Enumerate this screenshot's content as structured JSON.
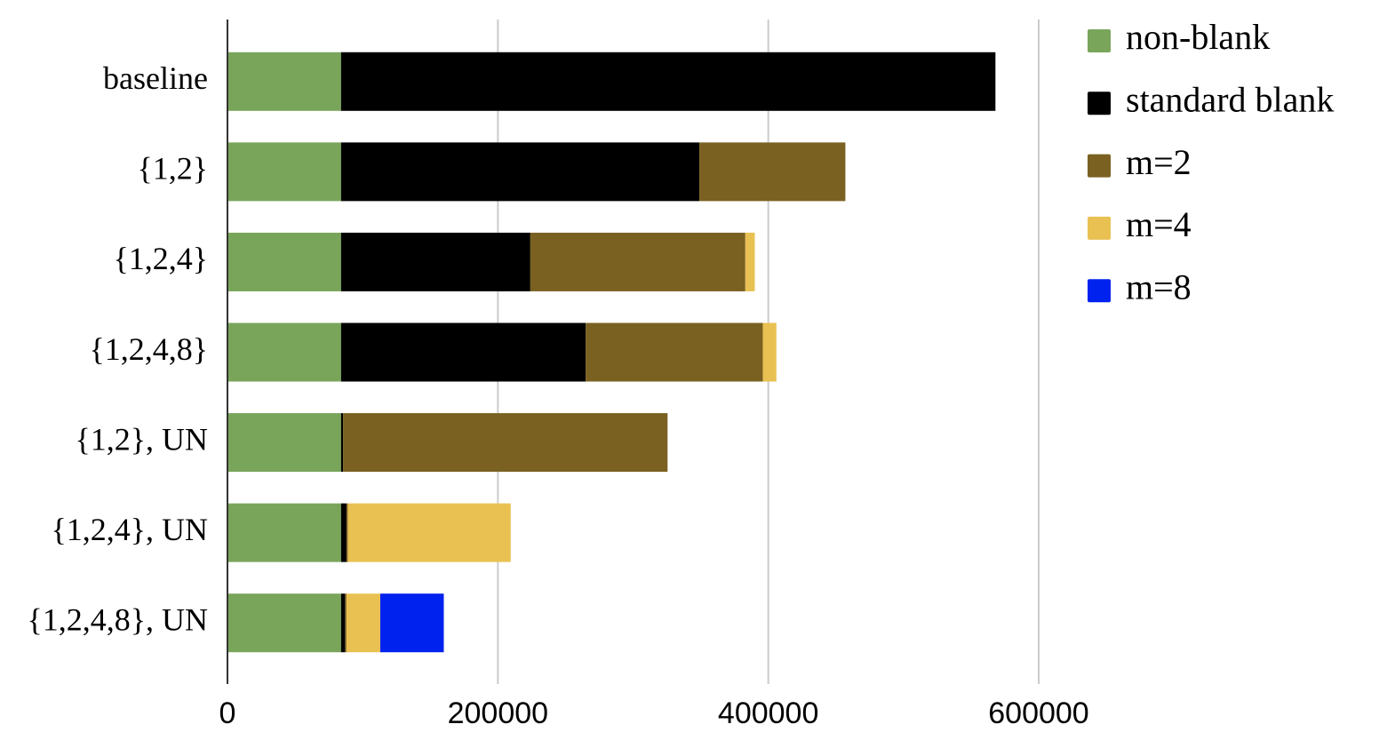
{
  "chart_data": {
    "type": "stacked-bar-horizontal",
    "categories": [
      "baseline",
      "{1,2}",
      "{1,2,4}",
      "{1,2,4,8}",
      "{1,2}, UN",
      "{1,2,4}, UN",
      "{1,2,4,8}, UN"
    ],
    "series": [
      {
        "name": "non-blank",
        "color": "#79a55a",
        "values": [
          84000,
          84000,
          84000,
          84000,
          84000,
          84000,
          84000
        ]
      },
      {
        "name": "standard blank",
        "color": "#000000",
        "values": [
          484000,
          265000,
          140000,
          181000,
          1500,
          4000,
          3000
        ]
      },
      {
        "name": "m=2",
        "color": "#7a6121",
        "values": [
          0,
          108000,
          159000,
          131000,
          240000,
          1000,
          1000
        ]
      },
      {
        "name": "m=4",
        "color": "#e9c152",
        "values": [
          0,
          0,
          7000,
          10000,
          0,
          120500,
          25000
        ]
      },
      {
        "name": "m=8",
        "color": "#0022ee",
        "values": [
          0,
          0,
          0,
          0,
          0,
          0,
          47000
        ]
      }
    ],
    "xlim": [
      0,
      600000
    ],
    "xticks": [
      0,
      200000,
      400000,
      600000
    ],
    "grid": true,
    "legend": "right"
  }
}
